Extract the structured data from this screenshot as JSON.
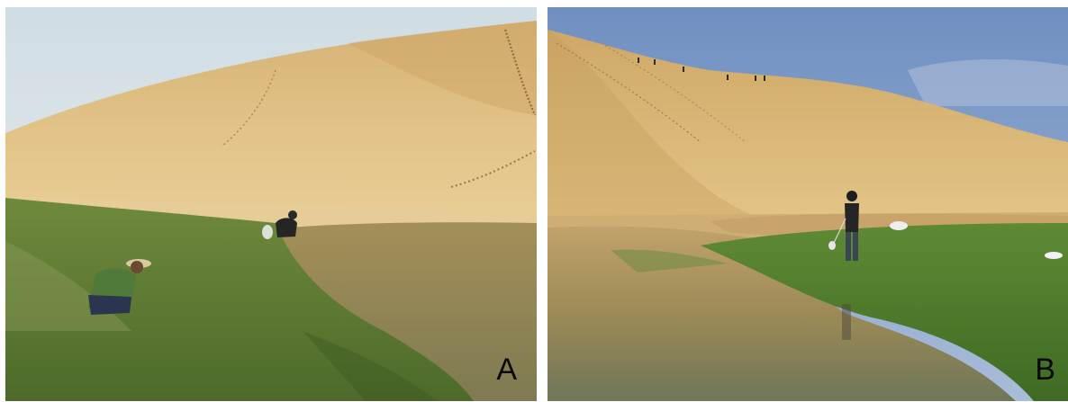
{
  "figure": {
    "panels": [
      {
        "id": "A",
        "label": "A"
      },
      {
        "id": "B",
        "label": "B"
      }
    ]
  },
  "colors": {
    "sky_a": "#dfe6ea",
    "sky_b": "#7f9ac4",
    "sand_light": "#e2c487",
    "sand_mid": "#cfa866",
    "sand_shadow": "#b98f52",
    "water": "#8f8252",
    "grass": "#5b7a34",
    "grass_dark": "#3f5a22"
  }
}
